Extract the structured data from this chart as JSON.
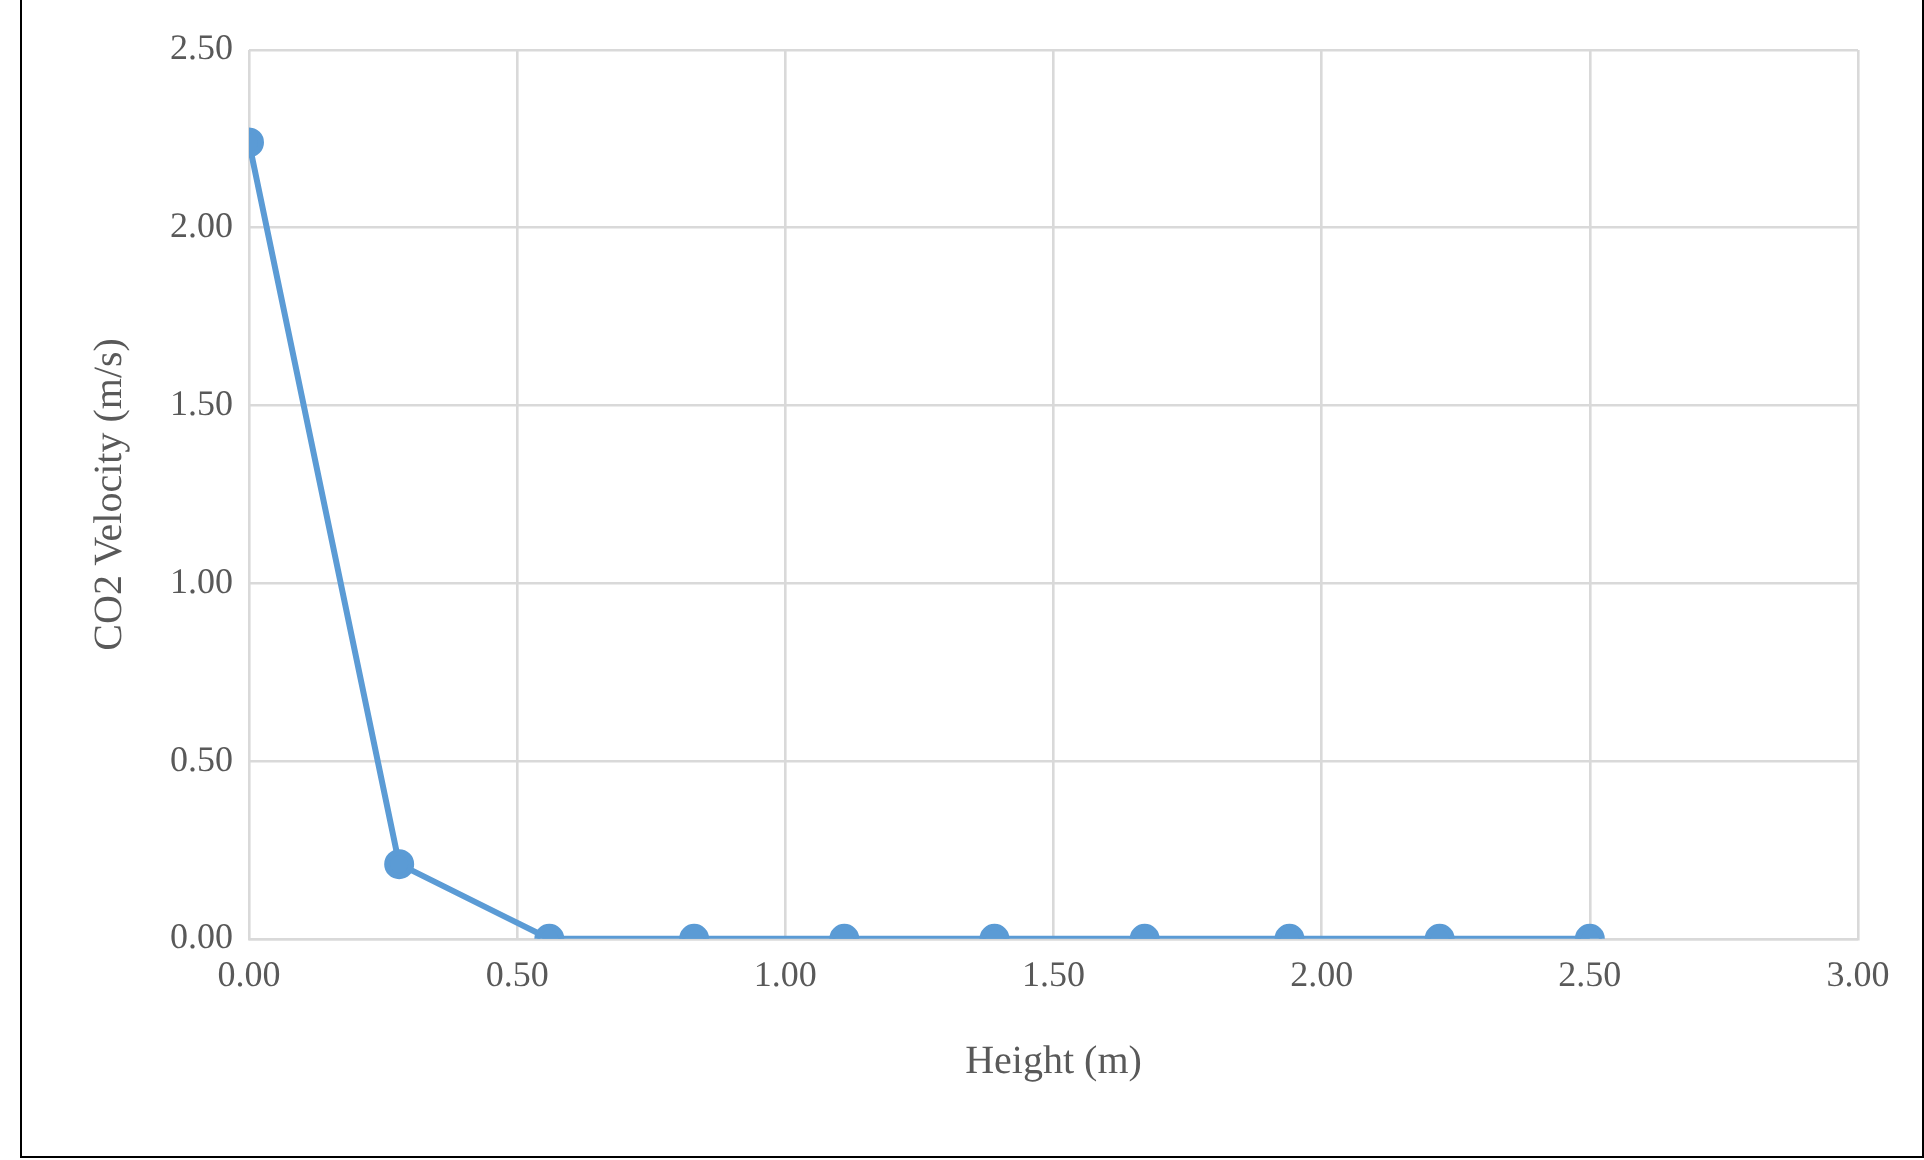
{
  "chart_data": {
    "type": "line",
    "xlabel": "Height (m)",
    "ylabel": "CO2 Velocity (m/s)",
    "x": [
      0,
      0.28,
      0.56,
      0.83,
      1.11,
      1.39,
      1.67,
      1.94,
      2.22,
      2.5
    ],
    "values": [
      2.24,
      0.21,
      0,
      0,
      0,
      0,
      0,
      0,
      0,
      0
    ],
    "color": "#5b9bd5",
    "marker": "circle",
    "grid": true,
    "xlim": [
      0,
      3
    ],
    "xticks": [
      {
        "value": 0,
        "label": "0.00"
      },
      {
        "value": 0.5,
        "label": "0.50"
      },
      {
        "value": 1,
        "label": "1.00"
      },
      {
        "value": 1.5,
        "label": "1.50"
      },
      {
        "value": 2,
        "label": "2.00"
      },
      {
        "value": 2.5,
        "label": "2.50"
      },
      {
        "value": 3,
        "label": "3.00"
      }
    ],
    "ylim": [
      0,
      2.5
    ],
    "yticks": [
      {
        "value": 0,
        "label": "0.00"
      },
      {
        "value": 0.5,
        "label": "0.50"
      },
      {
        "value": 1,
        "label": "1.00"
      },
      {
        "value": 1.5,
        "label": "1.50"
      },
      {
        "value": 2,
        "label": "2.00"
      },
      {
        "value": 2.5,
        "label": "2.50"
      }
    ]
  }
}
